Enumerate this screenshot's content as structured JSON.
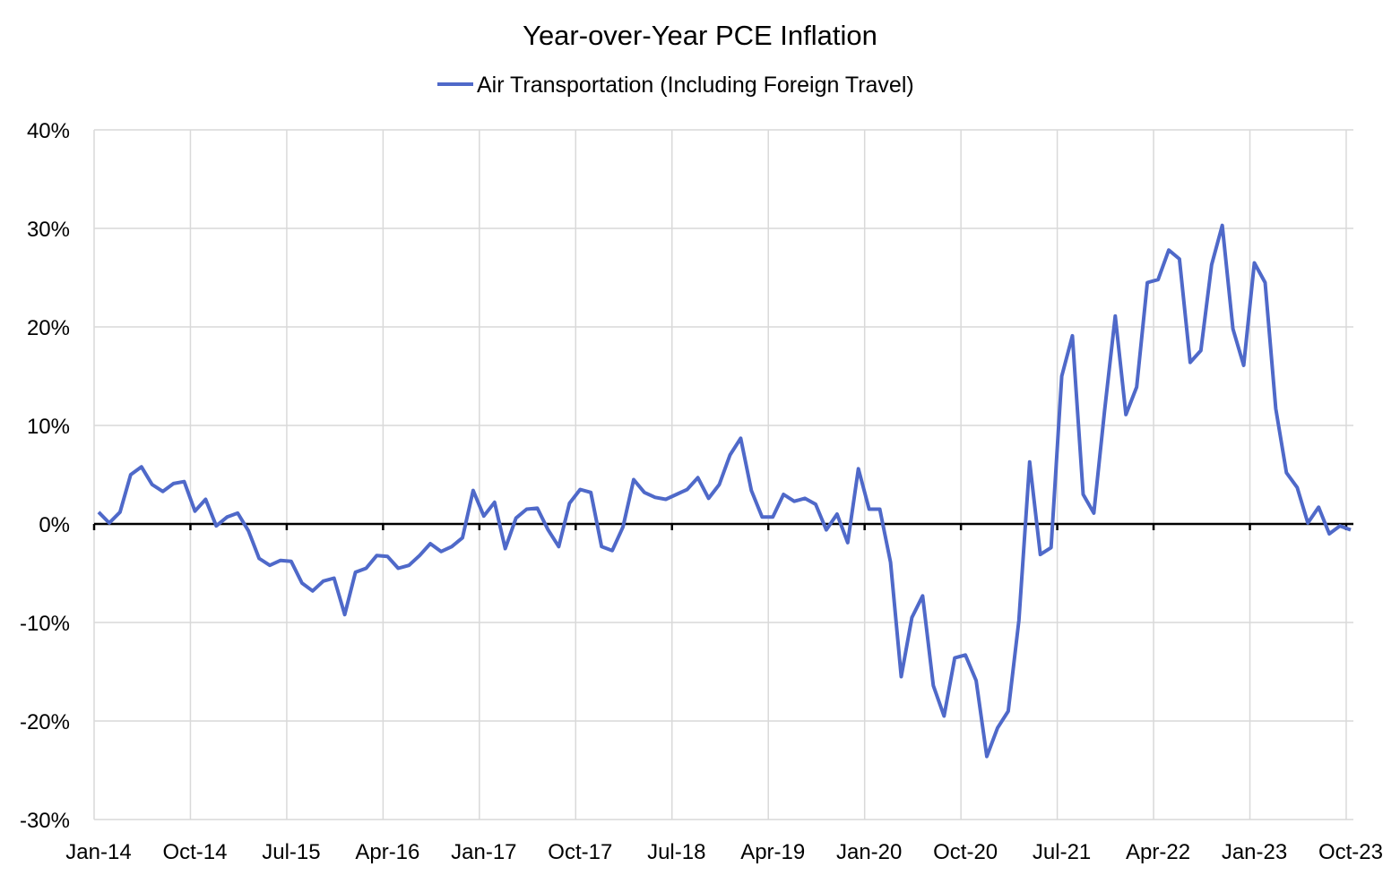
{
  "chart_data": {
    "type": "line",
    "title": "Year-over-Year PCE Inflation",
    "xlabel": "",
    "ylabel": "",
    "ylim": [
      -30,
      40
    ],
    "yticks": [
      -30,
      -20,
      -10,
      0,
      10,
      20,
      30,
      40
    ],
    "ytick_labels": [
      "-30%",
      "-20%",
      "-10%",
      "0%",
      "10%",
      "20%",
      "30%",
      "40%"
    ],
    "x_start": "Jan-14",
    "x_end": "Oct-23",
    "xtick_labels": [
      "Jan-14",
      "Oct-14",
      "Jul-15",
      "Apr-16",
      "Jan-17",
      "Oct-17",
      "Jul-18",
      "Apr-19",
      "Jan-20",
      "Oct-20",
      "Jul-21",
      "Apr-22",
      "Jan-23",
      "Oct-23"
    ],
    "grid": true,
    "legend_position": "top-center",
    "series": [
      {
        "name": "Air Transportation (Including Foreign Travel)",
        "color": "#4F69C9",
        "values": [
          1.2,
          0.1,
          1.2,
          5.0,
          5.8,
          4.0,
          3.3,
          4.1,
          4.3,
          1.3,
          2.5,
          -0.2,
          0.7,
          1.1,
          -0.7,
          -3.5,
          -4.2,
          -3.7,
          -3.8,
          -6.0,
          -6.8,
          -5.8,
          -5.5,
          -9.2,
          -4.9,
          -4.5,
          -3.2,
          -3.3,
          -4.5,
          -4.2,
          -3.2,
          -2.0,
          -2.8,
          -2.3,
          -1.4,
          3.4,
          0.8,
          2.2,
          -2.5,
          0.6,
          1.5,
          1.6,
          -0.6,
          -2.3,
          2.1,
          3.5,
          3.2,
          -2.3,
          -2.7,
          -0.3,
          4.5,
          3.2,
          2.7,
          2.5,
          3.0,
          3.5,
          4.7,
          2.6,
          4.0,
          7.0,
          8.7,
          3.4,
          0.7,
          0.7,
          3.0,
          2.3,
          2.6,
          2.0,
          -0.6,
          1.0,
          -1.9,
          5.6,
          1.5,
          1.5,
          -3.9,
          -15.5,
          -9.5,
          -7.3,
          -16.4,
          -19.5,
          -13.6,
          -13.3,
          -15.9,
          -23.6,
          -20.7,
          -19.0,
          -9.8,
          6.3,
          -3.1,
          -2.4,
          15.0,
          19.1,
          3.0,
          1.1,
          11.5,
          21.1,
          11.1,
          13.9,
          24.5,
          24.8,
          27.8,
          26.9,
          16.4,
          17.6,
          26.3,
          30.3,
          19.8,
          16.1,
          26.5,
          24.5,
          11.7,
          5.2,
          3.7,
          0.1,
          1.7,
          -1.0,
          -0.2,
          -0.6
        ]
      }
    ]
  }
}
